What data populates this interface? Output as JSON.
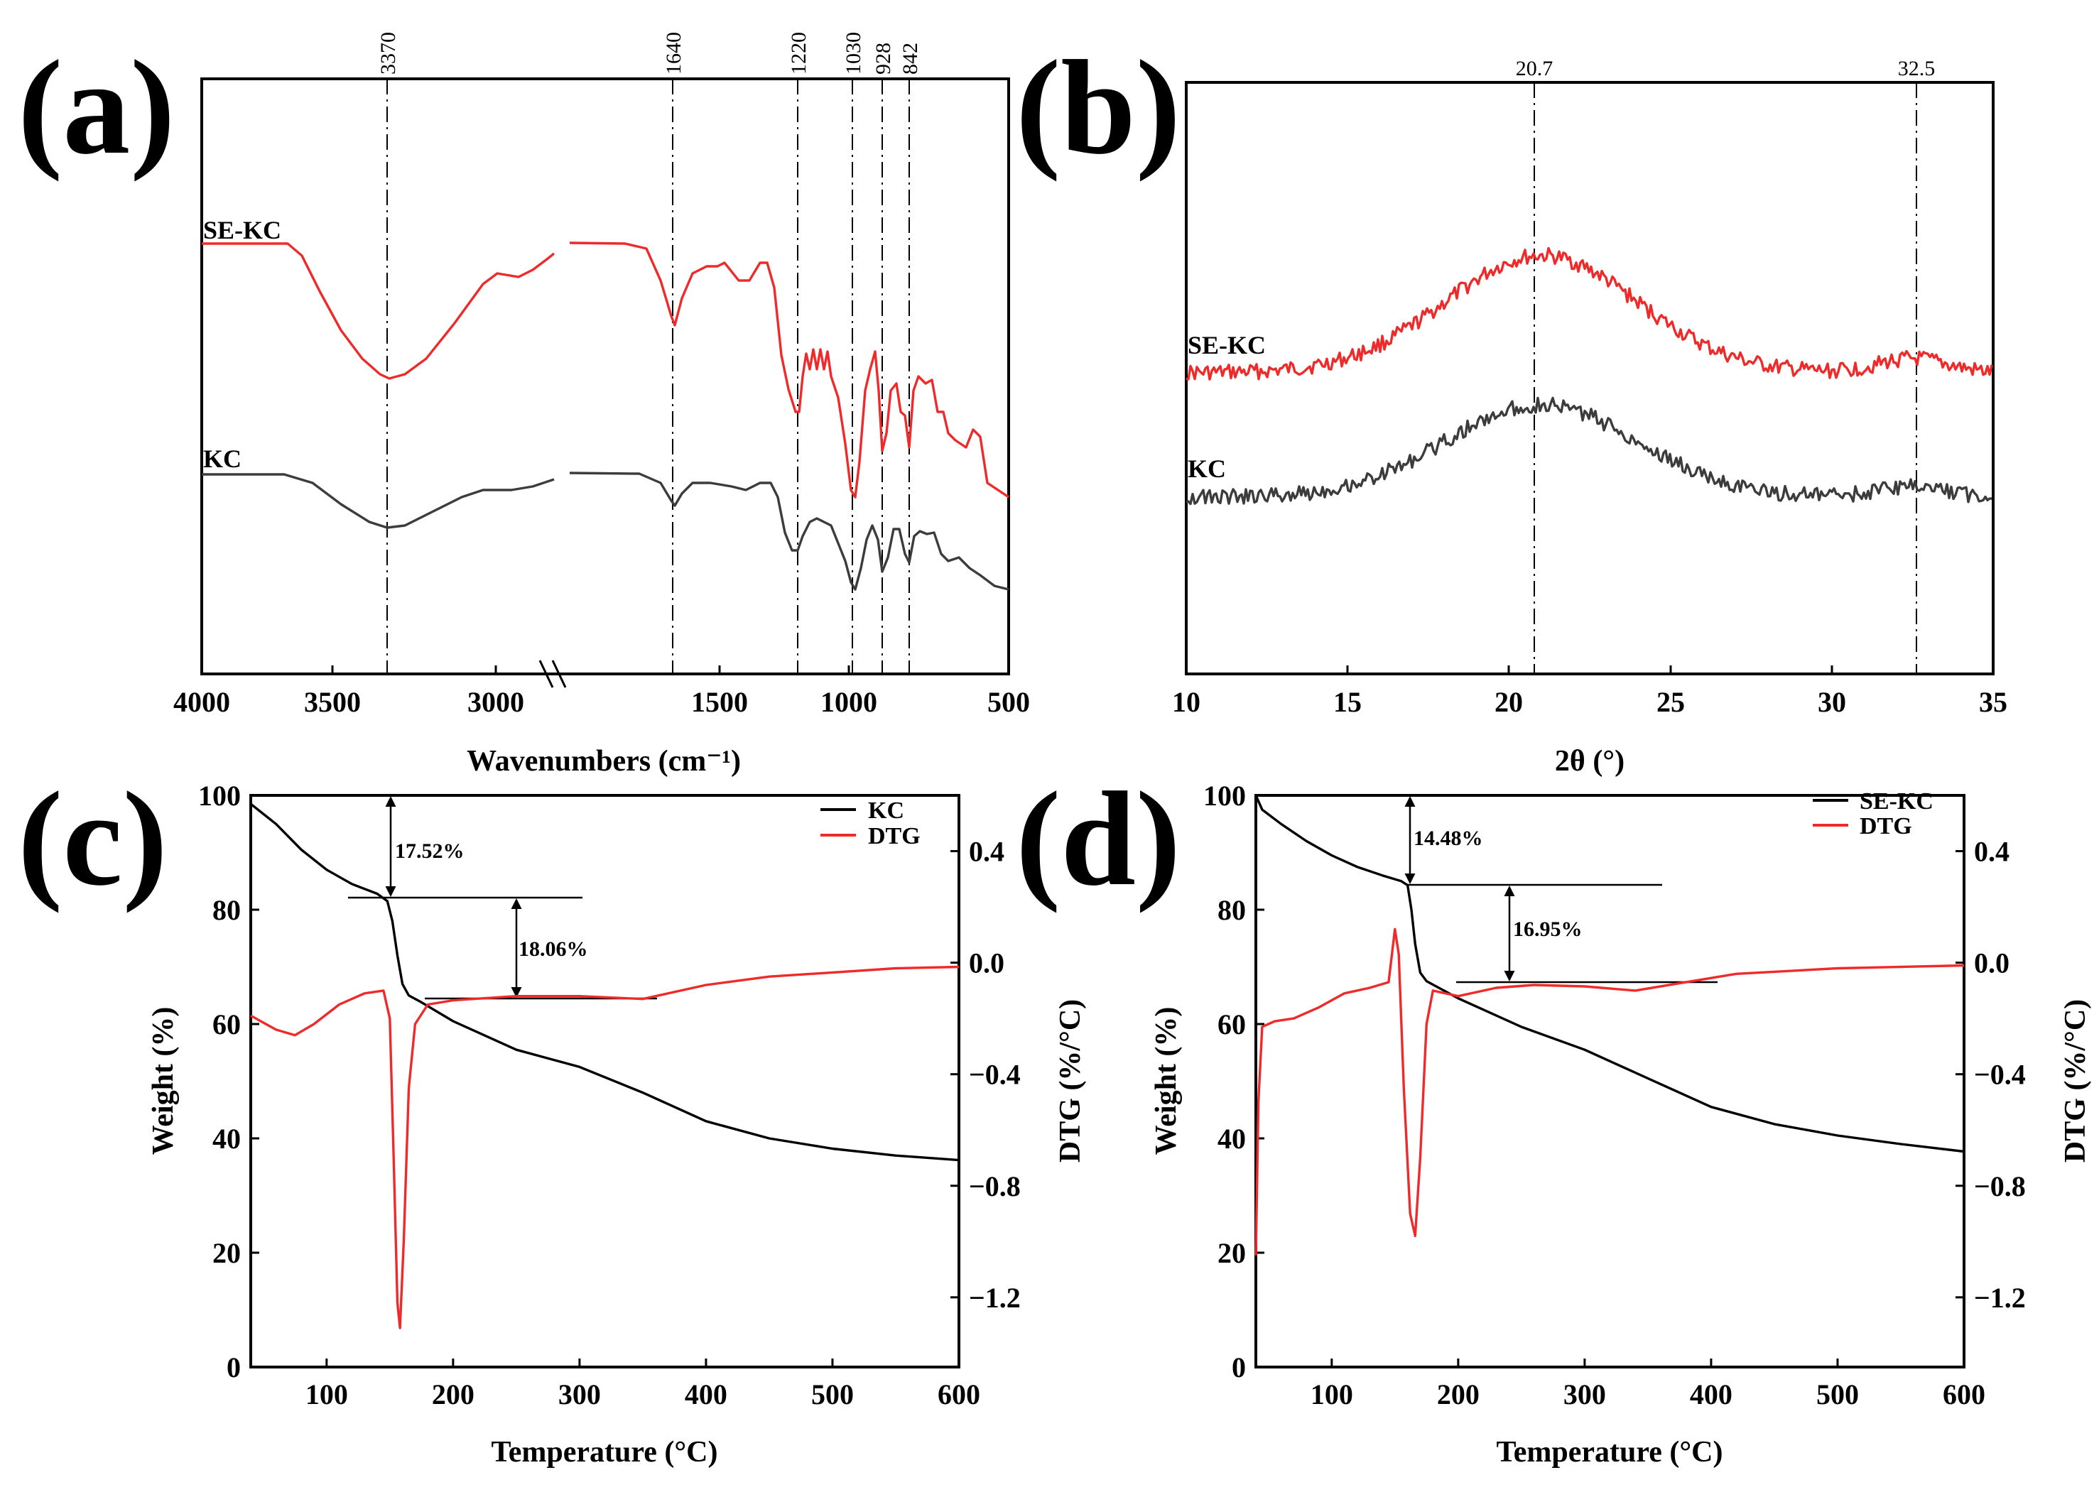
{
  "chart_data": [
    {
      "panel": "(a)",
      "type": "line",
      "xlabel": "Wavenumbers (cm⁻¹)",
      "ylabel": "",
      "x_tick_labels": [
        "4000",
        "3500",
        "3000",
        "1500",
        "1000",
        "500"
      ],
      "axis_break": "//",
      "peaks": [
        "3370",
        "1640",
        "1220",
        "1030",
        "928",
        "842"
      ],
      "series": [
        {
          "name": "SE-KC",
          "color": "#ee2a2a"
        },
        {
          "name": "KC",
          "color": "#3c3c3c"
        }
      ]
    },
    {
      "panel": "(b)",
      "type": "line",
      "xlabel": "2θ (°)",
      "ylabel": "",
      "xlim": [
        10,
        35
      ],
      "x_tick_labels": [
        "10",
        "15",
        "20",
        "25",
        "30",
        "35"
      ],
      "peaks": [
        "20.7",
        "32.5"
      ],
      "series": [
        {
          "name": "SE-KC",
          "color": "#ee2a2a"
        },
        {
          "name": "KC",
          "color": "#3c3c3c"
        }
      ]
    },
    {
      "panel": "(c)",
      "type": "line",
      "xlabel": "Temperature (°C)",
      "ylabel": "Weight (%)",
      "y2label": "DTG (%/°C)",
      "xlim": [
        40,
        600
      ],
      "ylim": [
        0,
        100
      ],
      "y2lim": [
        -1.45,
        0.6
      ],
      "x_tick_labels": [
        "100",
        "200",
        "300",
        "400",
        "500",
        "600"
      ],
      "y_tick_labels": [
        "0",
        "20",
        "40",
        "60",
        "80",
        "100"
      ],
      "y2_tick_labels": [
        "−1.2",
        "−0.8",
        "−0.4",
        "0.0",
        "0.4"
      ],
      "annotations": [
        "17.52%",
        "18.06%"
      ],
      "series": [
        {
          "name": "KC",
          "color": "#000000",
          "axis": "left",
          "points": [
            [
              40,
              98.5
            ],
            [
              60,
              95
            ],
            [
              80,
              90.5
            ],
            [
              100,
              87
            ],
            [
              120,
              84.5
            ],
            [
              140,
              82.8
            ],
            [
              148,
              81.5
            ],
            [
              152,
              78
            ],
            [
              156,
              72
            ],
            [
              160,
              67
            ],
            [
              165,
              65
            ],
            [
              175,
              63.8
            ],
            [
              200,
              60.5
            ],
            [
              250,
              55.5
            ],
            [
              300,
              52.5
            ],
            [
              350,
              48
            ],
            [
              400,
              43
            ],
            [
              450,
              40
            ],
            [
              500,
              38.2
            ],
            [
              550,
              37
            ],
            [
              600,
              36.2
            ]
          ]
        },
        {
          "name": "DTG",
          "color": "#ee2a2a",
          "axis": "right",
          "points": [
            [
              40,
              -0.19
            ],
            [
              60,
              -0.24
            ],
            [
              75,
              -0.26
            ],
            [
              90,
              -0.22
            ],
            [
              110,
              -0.15
            ],
            [
              130,
              -0.11
            ],
            [
              145,
              -0.1
            ],
            [
              150,
              -0.2
            ],
            [
              153,
              -0.7
            ],
            [
              156,
              -1.22
            ],
            [
              158,
              -1.31
            ],
            [
              161,
              -1.0
            ],
            [
              165,
              -0.45
            ],
            [
              170,
              -0.22
            ],
            [
              180,
              -0.15
            ],
            [
              200,
              -0.135
            ],
            [
              250,
              -0.12
            ],
            [
              300,
              -0.12
            ],
            [
              350,
              -0.13
            ],
            [
              400,
              -0.08
            ],
            [
              450,
              -0.05
            ],
            [
              500,
              -0.035
            ],
            [
              550,
              -0.02
            ],
            [
              600,
              -0.015
            ]
          ]
        }
      ]
    },
    {
      "panel": "(d)",
      "type": "line",
      "xlabel": "Temperature (°C)",
      "ylabel": "Weight (%)",
      "y2label": "DTG (%/°C)",
      "xlim": [
        40,
        600
      ],
      "ylim": [
        0,
        100
      ],
      "y2lim": [
        -1.45,
        0.6
      ],
      "x_tick_labels": [
        "100",
        "200",
        "300",
        "400",
        "500",
        "600"
      ],
      "y_tick_labels": [
        "0",
        "20",
        "40",
        "60",
        "80",
        "100"
      ],
      "y2_tick_labels": [
        "−1.2",
        "−0.8",
        "−0.4",
        "0.0",
        "0.4"
      ],
      "annotations": [
        "14.48%",
        "16.95%"
      ],
      "series": [
        {
          "name": "SE-KC",
          "color": "#000000",
          "axis": "left",
          "points": [
            [
              40,
              100
            ],
            [
              45,
              97.5
            ],
            [
              60,
              95
            ],
            [
              80,
              92
            ],
            [
              100,
              89.5
            ],
            [
              120,
              87.5
            ],
            [
              140,
              86
            ],
            [
              155,
              85
            ],
            [
              160,
              84.3
            ],
            [
              163,
              80
            ],
            [
              166,
              74
            ],
            [
              170,
              69
            ],
            [
              175,
              67.5
            ],
            [
              200,
              64.5
            ],
            [
              250,
              59.5
            ],
            [
              300,
              55.5
            ],
            [
              350,
              50.5
            ],
            [
              400,
              45.5
            ],
            [
              450,
              42.5
            ],
            [
              500,
              40.5
            ],
            [
              550,
              39
            ],
            [
              600,
              37.7
            ]
          ]
        },
        {
          "name": "DTG",
          "color": "#ee2a2a",
          "axis": "right",
          "points": [
            [
              40,
              -1.05
            ],
            [
              42,
              -0.5
            ],
            [
              45,
              -0.23
            ],
            [
              55,
              -0.21
            ],
            [
              70,
              -0.2
            ],
            [
              90,
              -0.16
            ],
            [
              110,
              -0.11
            ],
            [
              130,
              -0.09
            ],
            [
              145,
              -0.07
            ],
            [
              150,
              0.12
            ],
            [
              153,
              0.03
            ],
            [
              157,
              -0.45
            ],
            [
              162,
              -0.9
            ],
            [
              166,
              -0.98
            ],
            [
              170,
              -0.7
            ],
            [
              175,
              -0.22
            ],
            [
              180,
              -0.1
            ],
            [
              200,
              -0.12
            ],
            [
              230,
              -0.09
            ],
            [
              260,
              -0.08
            ],
            [
              300,
              -0.085
            ],
            [
              340,
              -0.1
            ],
            [
              380,
              -0.07
            ],
            [
              420,
              -0.04
            ],
            [
              500,
              -0.02
            ],
            [
              600,
              -0.01
            ]
          ]
        }
      ]
    }
  ],
  "legend_c": [
    {
      "label": "KC",
      "color": "#000000"
    },
    {
      "label": "DTG",
      "color": "#ee2a2a"
    }
  ],
  "legend_d": [
    {
      "label": "SE-KC",
      "color": "#000000"
    },
    {
      "label": "DTG",
      "color": "#ee2a2a"
    }
  ]
}
